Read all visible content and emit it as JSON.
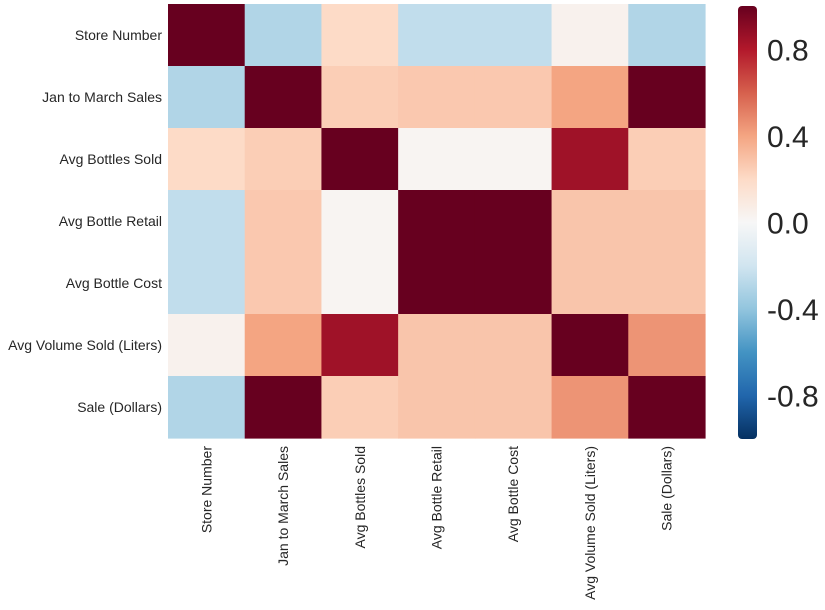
{
  "chart_data": {
    "type": "heatmap",
    "title": "",
    "xlabel": "",
    "ylabel": "",
    "row_labels": [
      "Store Number",
      "Jan to March Sales",
      "Avg Bottles Sold",
      "Avg Bottle Retail",
      "Avg Bottle Cost",
      "Avg Volume Sold (Liters)",
      "Sale (Dollars)"
    ],
    "col_labels": [
      "Store Number",
      "Jan to March Sales",
      "Avg Bottles Sold",
      "Avg Bottle Retail",
      "Avg Bottle Cost",
      "Avg Volume Sold (Liters)",
      "Sale (Dollars)"
    ],
    "values": [
      [
        1.0,
        -0.3,
        0.2,
        -0.25,
        -0.25,
        0.04,
        -0.3
      ],
      [
        -0.3,
        1.0,
        0.25,
        0.27,
        0.27,
        0.4,
        1.0
      ],
      [
        0.2,
        0.25,
        1.0,
        0.02,
        0.02,
        0.85,
        0.25
      ],
      [
        -0.25,
        0.27,
        0.02,
        1.0,
        1.0,
        0.28,
        0.28
      ],
      [
        -0.25,
        0.27,
        0.02,
        1.0,
        1.0,
        0.28,
        0.28
      ],
      [
        0.04,
        0.4,
        0.85,
        0.28,
        0.28,
        1.0,
        0.45
      ],
      [
        -0.3,
        1.0,
        0.25,
        0.28,
        0.28,
        0.45,
        1.0
      ]
    ],
    "colorbar": {
      "vmin": -1.0,
      "vmax": 1.0,
      "ticks": [
        0.8,
        0.4,
        0.0,
        -0.4,
        -0.8
      ],
      "tick_labels": [
        "0.8",
        "0.4",
        "0.0",
        "-0.4",
        "-0.8"
      ],
      "colormap": "RdBu_r"
    },
    "grid": false
  }
}
